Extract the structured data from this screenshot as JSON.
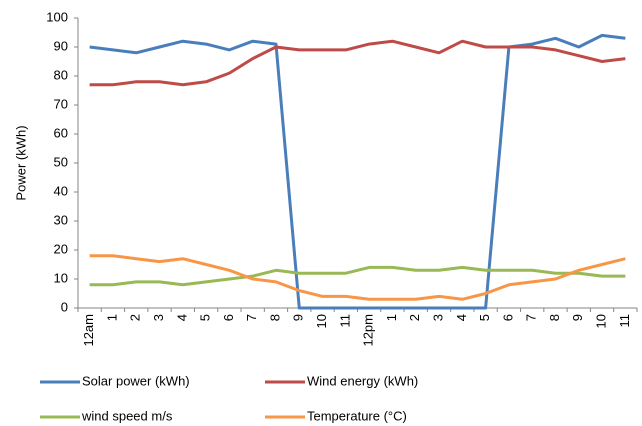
{
  "chart_data": {
    "type": "line",
    "y_label": "Power (kWh)",
    "categories": [
      "12am",
      "1",
      "2",
      "3",
      "4",
      "5",
      "6",
      "7",
      "8",
      "9",
      "10",
      "11",
      "12pm",
      "1",
      "2",
      "3",
      "4",
      "5",
      "6",
      "7",
      "8",
      "9",
      "10",
      "11"
    ],
    "series": [
      {
        "name": "Solar power (kWh)",
        "color": "#4a7ebb",
        "values": [
          90,
          89,
          88,
          90,
          92,
          91,
          89,
          92,
          91,
          0,
          0,
          0,
          0,
          0,
          0,
          0,
          0,
          0,
          90,
          91,
          93,
          90,
          94,
          93
        ]
      },
      {
        "name": "Wind energy (kWh)",
        "color": "#be4b48",
        "values": [
          77,
          77,
          78,
          78,
          77,
          78,
          81,
          86,
          90,
          89,
          89,
          89,
          91,
          92,
          90,
          88,
          92,
          90,
          90,
          90,
          89,
          87,
          85,
          86
        ]
      },
      {
        "name": "wind speed m/s",
        "color": "#98b954",
        "values": [
          8,
          8,
          9,
          9,
          8,
          9,
          10,
          11,
          13,
          12,
          12,
          12,
          14,
          14,
          13,
          13,
          14,
          13,
          13,
          13,
          12,
          12,
          11,
          11
        ]
      },
      {
        "name": "Temperature (°C)",
        "color": "#f79646",
        "values": [
          18,
          18,
          17,
          16,
          17,
          15,
          13,
          10,
          9,
          6,
          4,
          4,
          3,
          3,
          3,
          4,
          3,
          5,
          8,
          9,
          10,
          13,
          15,
          17
        ]
      }
    ],
    "ylim": [
      0,
      100
    ],
    "yticks": [
      0,
      10,
      20,
      30,
      40,
      50,
      60,
      70,
      80,
      90,
      100
    ],
    "grid": false
  }
}
